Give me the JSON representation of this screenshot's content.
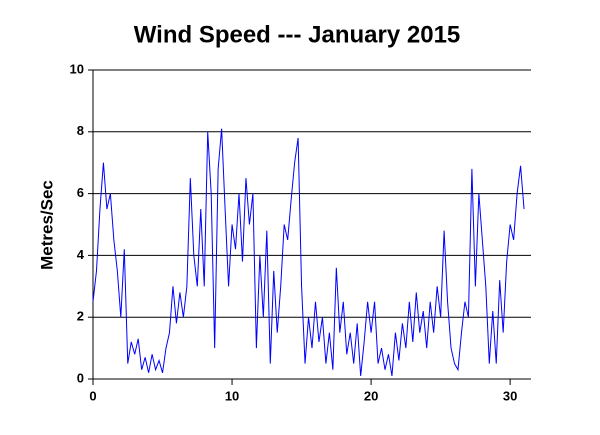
{
  "chart_data": {
    "type": "line",
    "title": "Wind Speed --- January 2015",
    "y_label": "Metres/Sec",
    "x": [
      0,
      0.25,
      0.5,
      0.75,
      1,
      1.25,
      1.5,
      1.75,
      2,
      2.25,
      2.5,
      2.75,
      3,
      3.25,
      3.5,
      3.75,
      4,
      4.25,
      4.5,
      4.75,
      5,
      5.25,
      5.5,
      5.75,
      6,
      6.25,
      6.5,
      6.75,
      7,
      7.25,
      7.5,
      7.75,
      8,
      8.25,
      8.5,
      8.75,
      9,
      9.25,
      9.5,
      9.75,
      10,
      10.25,
      10.5,
      10.75,
      11,
      11.25,
      11.5,
      11.75,
      12,
      12.25,
      12.5,
      12.75,
      13,
      13.25,
      13.5,
      13.75,
      14,
      14.25,
      14.5,
      14.75,
      15,
      15.25,
      15.5,
      15.75,
      16,
      16.25,
      16.5,
      16.75,
      17,
      17.25,
      17.5,
      17.75,
      18,
      18.25,
      18.5,
      18.75,
      19,
      19.25,
      19.5,
      19.75,
      20,
      20.25,
      20.5,
      20.75,
      21,
      21.25,
      21.5,
      21.75,
      22,
      22.25,
      22.5,
      22.75,
      23,
      23.25,
      23.5,
      23.75,
      24,
      24.25,
      24.5,
      24.75,
      25,
      25.25,
      25.5,
      25.75,
      26,
      26.25,
      26.5,
      26.75,
      27,
      27.25,
      27.5,
      27.75,
      28,
      28.25,
      28.5,
      28.75,
      29,
      29.25,
      29.5,
      29.75,
      30,
      30.25,
      30.5,
      30.75,
      31
    ],
    "values": [
      2.5,
      3.5,
      5.5,
      7.0,
      5.5,
      6.0,
      4.5,
      3.5,
      2.0,
      4.2,
      0.5,
      1.2,
      0.8,
      1.3,
      0.3,
      0.7,
      0.2,
      0.8,
      0.3,
      0.6,
      0.2,
      1.0,
      1.5,
      3.0,
      1.8,
      2.8,
      2.0,
      3.0,
      6.5,
      4.0,
      3.0,
      5.5,
      3.0,
      8.0,
      6.0,
      1.0,
      6.8,
      8.1,
      5.5,
      3.0,
      5.0,
      4.2,
      6.0,
      3.8,
      6.5,
      5.0,
      6.0,
      1.0,
      4.0,
      2.0,
      4.8,
      0.5,
      3.5,
      1.5,
      3.0,
      5.0,
      4.5,
      5.8,
      7.0,
      7.8,
      3.0,
      0.5,
      2.0,
      1.0,
      2.5,
      1.2,
      2.0,
      0.5,
      1.5,
      0.3,
      3.6,
      1.5,
      2.5,
      0.8,
      1.5,
      0.5,
      1.8,
      0.1,
      1.2,
      2.5,
      1.5,
      2.5,
      0.5,
      1.0,
      0.3,
      0.8,
      0.1,
      1.5,
      0.6,
      1.8,
      1.0,
      2.5,
      1.2,
      2.8,
      1.5,
      2.2,
      1.0,
      2.5,
      1.5,
      3.0,
      2.0,
      4.8,
      2.5,
      1.0,
      0.5,
      0.3,
      1.5,
      2.5,
      2.0,
      6.8,
      3.0,
      6.0,
      4.5,
      3.0,
      0.5,
      2.2,
      0.5,
      3.2,
      1.5,
      3.8,
      5.0,
      4.5,
      6.0,
      6.9,
      5.5
    ],
    "color": "#0000ff",
    "xlim": [
      0,
      31.5
    ],
    "xticks": [
      0,
      10,
      20,
      30
    ],
    "ylim": [
      0,
      10
    ],
    "yticks": [
      0,
      2,
      4,
      6,
      8,
      10
    ],
    "grid": true
  }
}
